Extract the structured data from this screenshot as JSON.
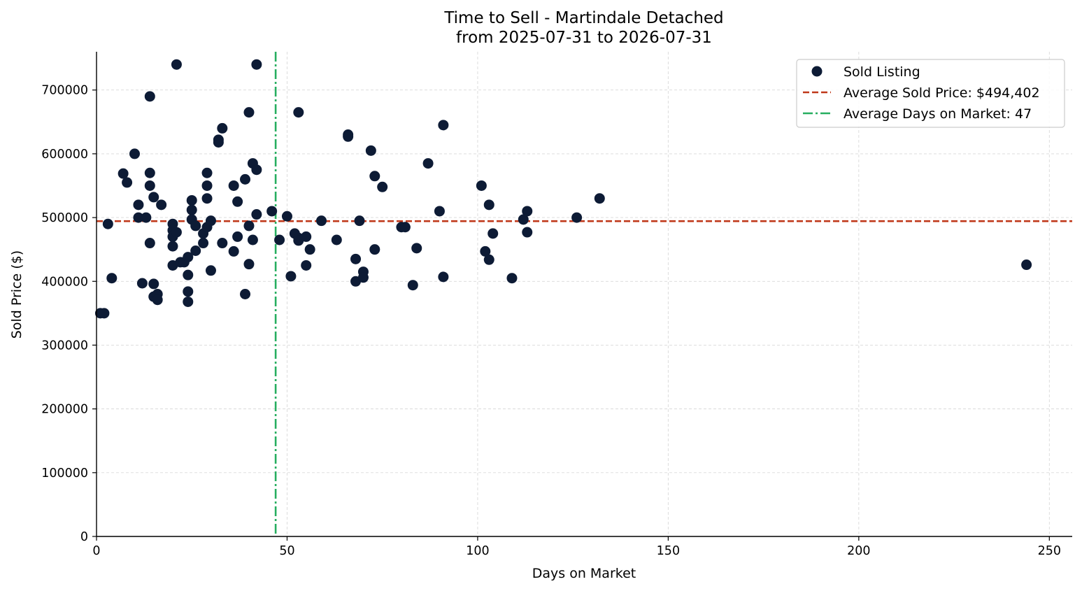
{
  "chart_data": {
    "type": "scatter",
    "title": "Time to Sell - Martindale Detached",
    "subtitle": "from 2025-07-31 to 2026-07-31",
    "xlabel": "Days on Market",
    "ylabel": "Sold Price ($)",
    "xlim": [
      0,
      256
    ],
    "ylim": [
      0,
      760000
    ],
    "xticks": [
      0,
      50,
      100,
      150,
      200,
      250
    ],
    "yticks": [
      0,
      100000,
      200000,
      300000,
      400000,
      500000,
      600000,
      700000
    ],
    "grid": true,
    "legend_position": "top-right",
    "colors": {
      "points": "#0d1b35",
      "avg_price_line": "#c0391b",
      "avg_days_line": "#27ae60"
    },
    "series": [
      {
        "name": "Sold Listing",
        "points": [
          [
            1,
            350000
          ],
          [
            2,
            350000
          ],
          [
            3,
            490000
          ],
          [
            4,
            405000
          ],
          [
            7,
            569000
          ],
          [
            8,
            555000
          ],
          [
            10,
            600000
          ],
          [
            11,
            520000
          ],
          [
            11,
            500000
          ],
          [
            12,
            397000
          ],
          [
            13,
            500000
          ],
          [
            14,
            690000
          ],
          [
            14,
            570000
          ],
          [
            14,
            550000
          ],
          [
            14,
            460000
          ],
          [
            15,
            532000
          ],
          [
            15,
            396000
          ],
          [
            15,
            376000
          ],
          [
            16,
            380000
          ],
          [
            16,
            371000
          ],
          [
            17,
            520000
          ],
          [
            20,
            490000
          ],
          [
            20,
            480000
          ],
          [
            20,
            470000
          ],
          [
            20,
            455000
          ],
          [
            20,
            425000
          ],
          [
            21,
            740000
          ],
          [
            21,
            477000
          ],
          [
            22,
            430000
          ],
          [
            23,
            430000
          ],
          [
            24,
            438000
          ],
          [
            24,
            410000
          ],
          [
            24,
            384000
          ],
          [
            24,
            368000
          ],
          [
            25,
            527000
          ],
          [
            25,
            512000
          ],
          [
            25,
            497000
          ],
          [
            26,
            487000
          ],
          [
            26,
            448000
          ],
          [
            28,
            475000
          ],
          [
            28,
            460000
          ],
          [
            29,
            570000
          ],
          [
            29,
            550000
          ],
          [
            29,
            530000
          ],
          [
            29,
            485000
          ],
          [
            30,
            495000
          ],
          [
            30,
            417000
          ],
          [
            32,
            622000
          ],
          [
            32,
            618000
          ],
          [
            33,
            640000
          ],
          [
            33,
            460000
          ],
          [
            36,
            550000
          ],
          [
            36,
            447000
          ],
          [
            37,
            525000
          ],
          [
            37,
            470000
          ],
          [
            39,
            560000
          ],
          [
            39,
            380000
          ],
          [
            40,
            665000
          ],
          [
            40,
            487000
          ],
          [
            40,
            427000
          ],
          [
            41,
            585000
          ],
          [
            41,
            465000
          ],
          [
            42,
            740000
          ],
          [
            42,
            575000
          ],
          [
            42,
            505000
          ],
          [
            46,
            510000
          ],
          [
            48,
            465000
          ],
          [
            50,
            502000
          ],
          [
            51,
            408000
          ],
          [
            52,
            475000
          ],
          [
            53,
            665000
          ],
          [
            53,
            468000
          ],
          [
            53,
            464000
          ],
          [
            55,
            470000
          ],
          [
            55,
            425000
          ],
          [
            56,
            450000
          ],
          [
            59,
            495000
          ],
          [
            63,
            465000
          ],
          [
            66,
            630000
          ],
          [
            66,
            627000
          ],
          [
            68,
            435000
          ],
          [
            68,
            400000
          ],
          [
            69,
            495000
          ],
          [
            70,
            415000
          ],
          [
            70,
            406000
          ],
          [
            72,
            605000
          ],
          [
            73,
            565000
          ],
          [
            73,
            450000
          ],
          [
            75,
            548000
          ],
          [
            80,
            485000
          ],
          [
            81,
            485000
          ],
          [
            83,
            394000
          ],
          [
            84,
            452000
          ],
          [
            87,
            585000
          ],
          [
            90,
            510000
          ],
          [
            91,
            645000
          ],
          [
            91,
            407000
          ],
          [
            101,
            550000
          ],
          [
            102,
            447000
          ],
          [
            103,
            520000
          ],
          [
            103,
            434000
          ],
          [
            104,
            475000
          ],
          [
            109,
            405000
          ],
          [
            112,
            497000
          ],
          [
            113,
            510000
          ],
          [
            113,
            477000
          ],
          [
            126,
            500000
          ],
          [
            132,
            530000
          ],
          [
            244,
            426000
          ]
        ]
      }
    ],
    "reference_lines": {
      "average_price": {
        "label": "Average Sold Price: $494,402",
        "value": 494402
      },
      "average_days": {
        "label": "Average Days on Market: 47",
        "value": 47
      }
    }
  }
}
